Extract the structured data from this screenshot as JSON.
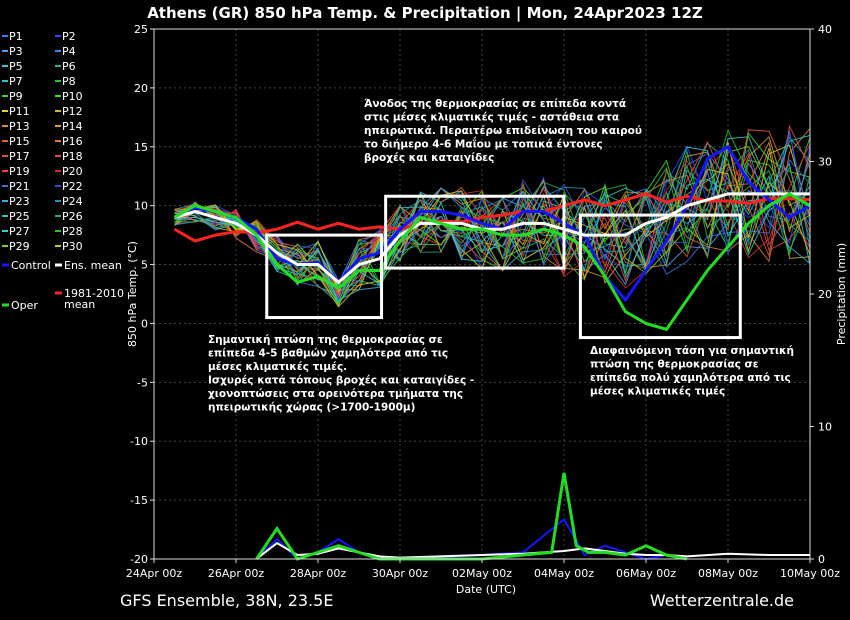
{
  "chart_data": {
    "type": "line",
    "title": "Athens  (GR)  850 hPa Temp. & Precipitation | Mon, 24Apr2023 12Z",
    "xlabel": "Date (UTC)",
    "ylabel": "850 hPa Temp. (°C)",
    "y2label": "Precipitation (mm)",
    "x_ticks": [
      "24Apr 00z",
      "26Apr 00z",
      "28Apr 00z",
      "30Apr 00z",
      "02May 00z",
      "04May 00z",
      "06May 00z",
      "08May 00z",
      "10May 00z"
    ],
    "x_range_days": [
      0,
      16
    ],
    "ylim": [
      -20,
      25
    ],
    "y_ticks": [
      -20,
      -15,
      -10,
      -5,
      0,
      5,
      10,
      15,
      20,
      25
    ],
    "y2lim": [
      0,
      40
    ],
    "y2_ticks": [
      0,
      10,
      20,
      30,
      40
    ],
    "grid": true,
    "legend_position": "left",
    "legend": [
      "P1",
      "P2",
      "P3",
      "P4",
      "P5",
      "P6",
      "P7",
      "P8",
      "P9",
      "P10",
      "P11",
      "P12",
      "P13",
      "P14",
      "P15",
      "P16",
      "P17",
      "P18",
      "P19",
      "P20",
      "P21",
      "P22",
      "P23",
      "P24",
      "P25",
      "P26",
      "P27",
      "P28",
      "P29",
      "P30",
      "Control",
      "Ens. mean",
      "Oper",
      "1981-2010 mean"
    ],
    "series": [
      {
        "name": "Control",
        "color": "#1515ff",
        "x": [
          0.5,
          1,
          1.5,
          2,
          2.5,
          3,
          3.5,
          4,
          4.5,
          5,
          5.5,
          6,
          6.5,
          7,
          7.5,
          8,
          8.5,
          9,
          9.5,
          10,
          10.5,
          11,
          11.5,
          12,
          12.5,
          13,
          13.5,
          14,
          14.5,
          15,
          15.5,
          16
        ],
        "y": [
          9,
          9.8,
          9.5,
          9,
          8,
          5.5,
          5,
          5.2,
          3.5,
          5.5,
          6,
          8,
          9.5,
          9.5,
          9.2,
          8.5,
          8,
          9.5,
          9.5,
          8.5,
          7.5,
          4,
          2,
          4.5,
          7,
          10,
          14,
          15,
          12,
          10.5,
          9,
          10
        ]
      },
      {
        "name": "Ens. mean",
        "color": "#ffffff",
        "x": [
          0.5,
          1,
          1.5,
          2,
          2.5,
          3,
          3.5,
          4,
          4.5,
          5,
          5.5,
          6,
          6.5,
          7,
          7.5,
          8,
          8.5,
          9,
          9.5,
          10,
          10.5,
          11,
          11.5,
          12,
          12.5,
          13,
          13.5,
          14,
          14.5,
          15,
          15.5,
          16
        ],
        "y": [
          9,
          9.5,
          9,
          8.5,
          7.5,
          6,
          5,
          5,
          3.5,
          5,
          5.5,
          7.5,
          8.5,
          8.5,
          8.5,
          8,
          8,
          8.5,
          8.5,
          8,
          7.5,
          7.5,
          7.5,
          8.5,
          9,
          10,
          10.5,
          11,
          11,
          11,
          11,
          11
        ]
      },
      {
        "name": "Oper",
        "color": "#22dd22",
        "x": [
          0.5,
          1,
          1.5,
          2,
          2.5,
          3,
          3.5,
          4,
          4.5,
          5,
          5.5,
          6,
          6.5,
          7,
          7.5,
          8,
          8.5,
          9,
          9.5,
          10,
          10.5,
          11,
          11.5,
          12,
          12.5,
          13,
          13.5,
          14,
          14.5,
          15,
          15.5,
          16
        ],
        "y": [
          9,
          10,
          9.5,
          9,
          7.5,
          5,
          3.5,
          4,
          3,
          4.5,
          4.5,
          7,
          9,
          8.5,
          8,
          8,
          7.5,
          7.5,
          8,
          7.5,
          6.5,
          4,
          1,
          0,
          -0.5,
          2,
          4.5,
          6.5,
          8.5,
          10,
          11,
          10
        ]
      },
      {
        "name": "1981-2010 mean",
        "color": "#ff2222",
        "x": [
          0.5,
          1,
          1.5,
          2,
          2.5,
          3,
          3.5,
          4,
          4.5,
          5,
          5.5,
          6,
          6.5,
          7,
          7.5,
          8,
          8.5,
          9,
          9.5,
          10,
          10.5,
          11,
          11.5,
          12,
          12.5,
          13,
          13.5,
          14,
          14.5,
          15,
          15.5,
          16
        ],
        "y": [
          8,
          7,
          7.5,
          7.8,
          7.7,
          8,
          8.6,
          8,
          8.5,
          8,
          8.2,
          8,
          8.5,
          8.7,
          8.6,
          9,
          9.2,
          9.5,
          9.5,
          10,
          10.5,
          10,
          10.5,
          11,
          10.3,
          10.8,
          10.4,
          10.4,
          10.2,
          10.6,
          10.6,
          10.5
        ]
      },
      {
        "name": "Control precipitation",
        "axis": "y2",
        "color": "#1515ff",
        "x": [
          2.5,
          3,
          3.5,
          4,
          4.5,
          5,
          5.5,
          6,
          8,
          9,
          10,
          10.5,
          11,
          11.5,
          12,
          12.5,
          13
        ],
        "y": [
          0,
          1.5,
          0,
          0.5,
          1.5,
          0.5,
          0,
          0,
          0.3,
          0.5,
          3,
          0.3,
          1,
          0.5,
          0,
          0.3,
          0
        ]
      },
      {
        "name": "Ens. mean precipitation",
        "axis": "y2",
        "color": "#ffffff",
        "x": [
          2.5,
          3,
          3.5,
          4,
          4.5,
          5,
          5.5,
          6,
          8,
          9,
          10,
          10.5,
          11,
          11.5,
          12,
          12.5,
          13,
          14,
          15,
          16
        ],
        "y": [
          0,
          1.2,
          0.3,
          0.4,
          0.8,
          0.5,
          0.2,
          0.1,
          0.3,
          0.4,
          0.6,
          0.8,
          0.6,
          0.4,
          0.3,
          0.3,
          0.2,
          0.4,
          0.3,
          0.3
        ]
      },
      {
        "name": "Oper precipitation",
        "axis": "y2",
        "color": "#22dd22",
        "x": [
          2.5,
          3,
          3.5,
          4,
          4.5,
          5,
          5.5,
          6,
          8,
          9,
          9.7,
          10,
          10.3,
          10.6,
          11,
          11.5,
          12,
          12.5,
          13
        ],
        "y": [
          0,
          2.3,
          0,
          0.5,
          1,
          0.5,
          0,
          0,
          0,
          0.3,
          0.5,
          6.5,
          1,
          0.5,
          0.5,
          0.3,
          1,
          0.3,
          0
        ]
      }
    ],
    "annotations": [
      "Ανοδος της θερμοκρασίας σε επίπεδα κοντά στις μέσες κλιματικές τιμές - αστάθεια στα ηπειρωτικά. Περαιτέρω επιδείνωση του καιρού το διήμερο 4-6 Μαίου με τοπικά έντονες βροχές και καταιγίδες",
      "Σημαντική πτώση της θερμοκρασίας σε επίπεδα 4-5 βαθμών χαμηλότερα από τις μέσες κλιματικές τιμές. Ισχυρές κατά τόπους βροχές και καταιγίδες - χιονοπτώσεις στα ορεινότερα τμήματα της ηπειρωτικής χώρας (>1700-1900μ)",
      "Διαφαινόμενη τάση για σημαντική πτώση της θερμοκρασίας σε επίπεδα πολύ χαμηλότερα από τις μέσες κλιματικές τιμές"
    ],
    "highlight_boxes": [
      {
        "x": [
          2.75,
          5.55
        ],
        "y": [
          0.5,
          7.5
        ]
      },
      {
        "x": [
          5.65,
          10.0
        ],
        "y": [
          4.7,
          10.8
        ]
      },
      {
        "x": [
          10.4,
          14.3
        ],
        "y": [
          -1.2,
          9.2
        ]
      }
    ]
  },
  "annotation_lines": [
    [
      "Άνοδος της θερμοκρασίας σε επίπεδα κοντά",
      "στις μέσες κλιματικές τιμές - αστάθεια στα",
      "ηπειρωτικά. Περαιτέρω επιδείνωση του καιρού",
      "το διήμερο 4-6 Μαΐου με τοπικά έντονες",
      "βροχές και καταιγίδες"
    ],
    [
      "Σημαντική πτώση της θερμοκρασίας σε",
      "επίπεδα 4-5 βαθμών χαμηλότερα από τις",
      "μέσες κλιματικές τιμές.",
      "Ισχυρές κατά τόπους βροχές και καταιγίδες -",
      "χιονοπτώσεις στα ορεινότερα τμήματα της",
      "ηπειρωτικής χώρας (>1700-1900μ)"
    ],
    [
      "Διαφαινόμενη τάση για σημαντική",
      "πτώση της θερμοκρασίας σε",
      "επίπεδα πολύ χαμηλότερα από τις",
      "μέσες κλιματικές τιμές"
    ]
  ],
  "legend_items": [
    {
      "label": "P1",
      "color": "#3a7aff"
    },
    {
      "label": "P2",
      "color": "#2a46ff"
    },
    {
      "label": "P3",
      "color": "#4aa0ff"
    },
    {
      "label": "P4",
      "color": "#3a8ae0"
    },
    {
      "label": "P5",
      "color": "#3ac8d8"
    },
    {
      "label": "P6",
      "color": "#20b890"
    },
    {
      "label": "P7",
      "color": "#20c8c8"
    },
    {
      "label": "P8",
      "color": "#20c040"
    },
    {
      "label": "P9",
      "color": "#40d040"
    },
    {
      "label": "P10",
      "color": "#30e030"
    },
    {
      "label": "P11",
      "color": "#d8d820"
    },
    {
      "label": "P12",
      "color": "#c8b830"
    },
    {
      "label": "P13",
      "color": "#e08a30"
    },
    {
      "label": "P14",
      "color": "#d8a028"
    },
    {
      "label": "P15",
      "color": "#e06030"
    },
    {
      "label": "P16",
      "color": "#e07a40"
    },
    {
      "label": "P17",
      "color": "#e05040"
    },
    {
      "label": "P18",
      "color": "#e04848"
    },
    {
      "label": "P19",
      "color": "#ff4040"
    },
    {
      "label": "P20",
      "color": "#d03030"
    },
    {
      "label": "P21",
      "color": "#4070e0"
    },
    {
      "label": "P22",
      "color": "#3050d0"
    },
    {
      "label": "P23",
      "color": "#40a8e8"
    },
    {
      "label": "P24",
      "color": "#3090c0"
    },
    {
      "label": "P25",
      "color": "#30c8b0"
    },
    {
      "label": "P26",
      "color": "#28a878"
    },
    {
      "label": "P27",
      "color": "#30d0d0"
    },
    {
      "label": "P28",
      "color": "#28c028"
    },
    {
      "label": "P29",
      "color": "#80d020"
    },
    {
      "label": "P30",
      "color": "#c8c820"
    },
    {
      "label": "Control",
      "color": "#1515ff"
    },
    {
      "label": "Ens. mean",
      "color": "#ffffff"
    },
    {
      "label": "Oper",
      "color": "#22dd22"
    },
    {
      "label": "1981-2010 mean",
      "color": "#ff2222"
    }
  ],
  "footer": {
    "left": "GFS Ensemble, 38N, 23.5E",
    "right": "Wetterzentrale.de"
  }
}
